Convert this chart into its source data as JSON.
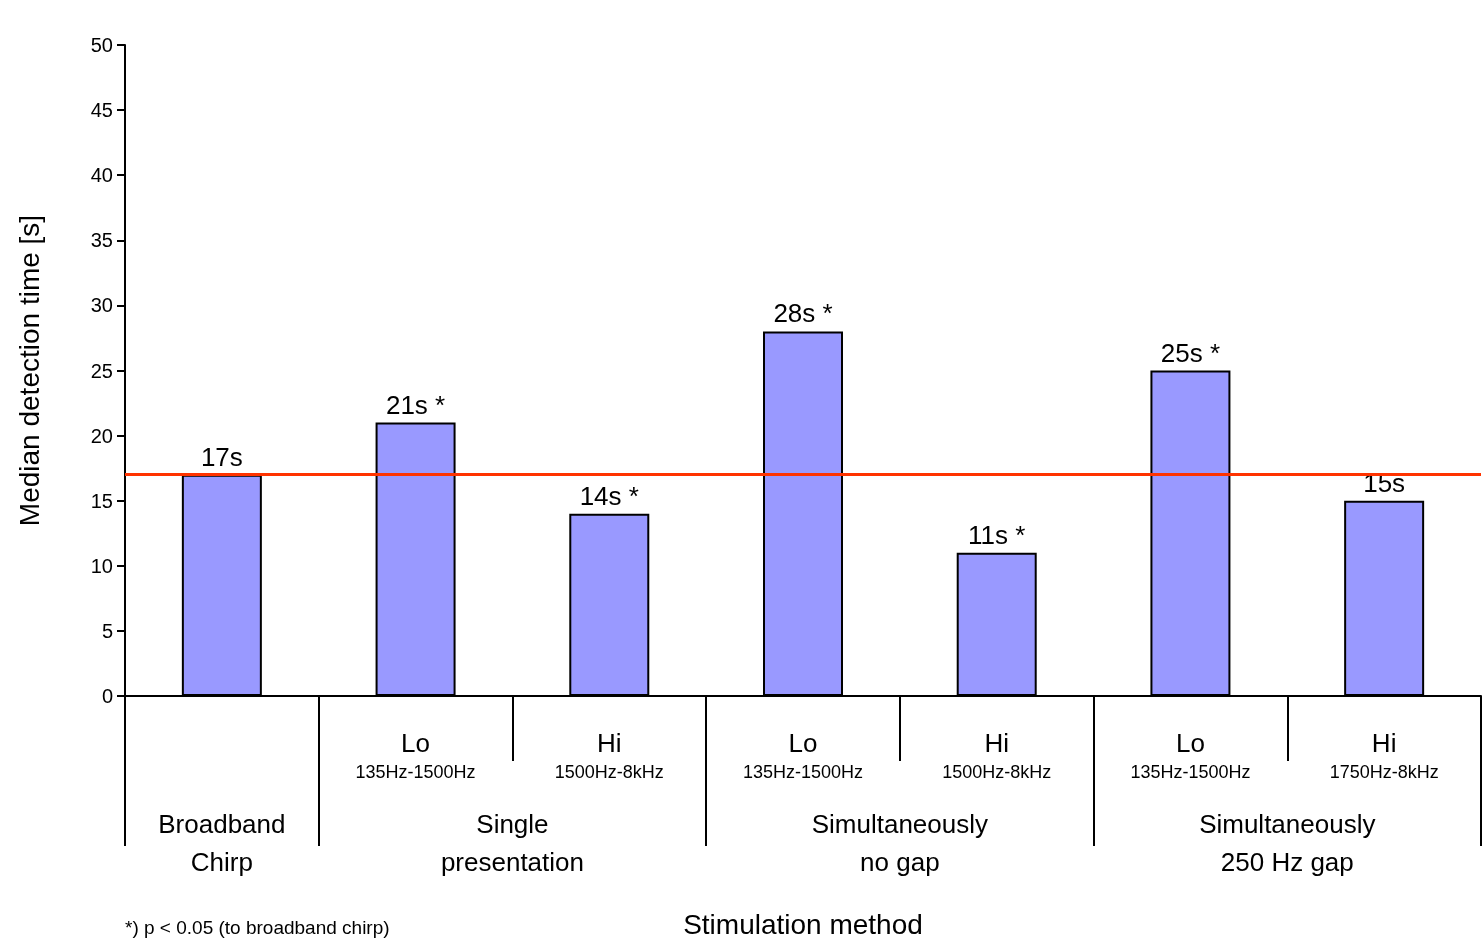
{
  "chart_data": {
    "type": "bar",
    "ylabel": "Median detection time [s]",
    "categories": [
      null,
      "Lo\n135Hz-1500Hz",
      "Hi\n1500Hz-8kHz",
      "Lo\n135Hz-1500Hz",
      "Hi\n1500Hz-8kHz",
      "Lo\n135Hz-1500Hz",
      "Hi\n1750Hz-8kHz"
    ],
    "values": [
      17,
      21,
      14,
      28,
      11,
      25,
      15
    ],
    "value_labels": [
      "17s",
      "21s *",
      "14s *",
      "28s *",
      "11s *",
      "25s *",
      "15s"
    ],
    "color": "#9999ff",
    "ylim": [
      0,
      50
    ],
    "yticks": [
      0,
      5,
      10,
      15,
      20,
      25,
      30,
      35,
      40,
      45,
      50
    ],
    "ref_lines": [
      {
        "axis": "y",
        "value": 17,
        "color": "#ff3300"
      }
    ],
    "annotations": [
      "Broadband\nChirp",
      "Single\npresentation",
      "Simultaneously\nno gap",
      "Simultaneously\n250 Hz gap",
      "Stimulation method",
      "*) p < 0.05 (to broadband chirp)"
    ],
    "grid": false
  }
}
